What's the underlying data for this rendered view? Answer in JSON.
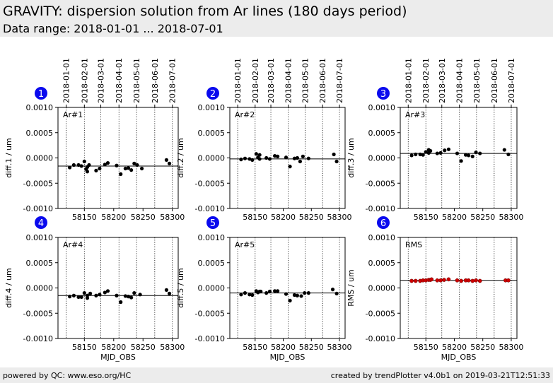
{
  "header": {
    "title": "GRAVITY: dispersion solution from Ar lines (180 days period)",
    "subtitle": "Data range: 2018-01-01 ... 2018-07-01"
  },
  "footer": {
    "left": "powered by QC: www.eso.org/HC",
    "right": "created by trendPlotter v4.0b1 on 2019-03-21T12:51:33"
  },
  "colors": {
    "badge": "#0a0aee",
    "point": "#000000",
    "rms_point": "#cc0000",
    "grid": "#000000"
  },
  "date_axis": {
    "labels": [
      "2018-01-01",
      "2018-02-01",
      "2018-03-01",
      "2018-04-01",
      "2018-05-01",
      "2018-06-01",
      "2018-07-01"
    ],
    "mjd": [
      58119,
      58150,
      58178,
      58209,
      58239,
      58270,
      58300
    ]
  },
  "chart_data": [
    {
      "type": "scatter",
      "badge": "1",
      "label": "Ar#1",
      "ylabel": "diff.1 / um",
      "xlabel": "",
      "show_dates": true,
      "xlim": [
        58105,
        58310
      ],
      "ylim": [
        -0.001,
        0.001
      ],
      "yticks": [
        0.001,
        0.0005,
        0.0,
        -0.0005,
        -0.001
      ],
      "ytick_labels": [
        "0.0010",
        "0.0005",
        "0.0000",
        "-0.0005",
        "-0.0010"
      ],
      "xticks": [
        58150,
        58200,
        58250,
        58300
      ],
      "xtick_labels": [
        "58150",
        "58200",
        "58250",
        "58300"
      ],
      "reference": -0.00016,
      "point_color": "#000000",
      "x": [
        58125,
        58132,
        58140,
        58145,
        58150,
        58153,
        58155,
        58155,
        58158,
        58170,
        58176,
        58185,
        58190,
        58205,
        58212,
        58220,
        58225,
        58230,
        58235,
        58240,
        58248,
        58290,
        58295
      ],
      "y": [
        -0.00019,
        -0.00014,
        -0.00014,
        -0.00016,
        -7e-05,
        -0.00022,
        -0.00018,
        -0.00027,
        -0.00014,
        -0.00025,
        -0.00021,
        -0.00013,
        -0.0001,
        -0.00015,
        -0.00032,
        -0.00021,
        -0.0002,
        -0.00024,
        -0.00011,
        -0.00014,
        -0.00021,
        -4e-05,
        -0.00011
      ]
    },
    {
      "type": "scatter",
      "badge": "2",
      "label": "Ar#2",
      "ylabel": "diff.2 / um",
      "xlabel": "",
      "show_dates": true,
      "xlim": [
        58105,
        58310
      ],
      "ylim": [
        -0.001,
        0.001
      ],
      "yticks": [
        0.001,
        0.0005,
        0.0,
        -0.0005,
        -0.001
      ],
      "ytick_labels": [
        "0.0010",
        "0.0005",
        "0.0000",
        "-0.0005",
        "-0.0010"
      ],
      "xticks": [
        58150,
        58200,
        58250,
        58300
      ],
      "xtick_labels": [
        "58150",
        "58200",
        "58250",
        "58300"
      ],
      "reference": -2e-05,
      "point_color": "#000000",
      "x": [
        58125,
        58132,
        58140,
        58145,
        58152,
        58155,
        58158,
        58158,
        58170,
        58176,
        58185,
        58190,
        58205,
        58212,
        58220,
        58225,
        58230,
        58235,
        58245,
        58290,
        58295
      ],
      "y": [
        -3e-05,
        -1e-05,
        -2e-05,
        -4e-05,
        8e-05,
        1e-05,
        -2e-05,
        6e-05,
        0.0,
        -2e-05,
        4e-05,
        3e-05,
        1e-05,
        -0.00017,
        -1e-05,
        0.0,
        -7e-05,
        3e-05,
        -1e-05,
        7e-05,
        -7e-05
      ]
    },
    {
      "type": "scatter",
      "badge": "3",
      "label": "Ar#3",
      "ylabel": "diff.3 / um",
      "xlabel": "",
      "show_dates": true,
      "xlim": [
        58105,
        58310
      ],
      "ylim": [
        -0.001,
        0.001
      ],
      "yticks": [
        0.001,
        0.0005,
        0.0,
        -0.0005,
        -0.001
      ],
      "ytick_labels": [
        "0.0010",
        "0.0005",
        "0.0000",
        "-0.0005",
        "-0.0010"
      ],
      "xticks": [
        58150,
        58200,
        58250,
        58300
      ],
      "xtick_labels": [
        "58150",
        "58200",
        "58250",
        "58300"
      ],
      "reference": 9e-05,
      "point_color": "#000000",
      "x": [
        58125,
        58132,
        58140,
        58145,
        58150,
        58155,
        58155,
        58158,
        58170,
        58176,
        58183,
        58190,
        58205,
        58212,
        58220,
        58225,
        58232,
        58238,
        58245,
        58288,
        58295
      ],
      "y": [
        5e-05,
        7e-05,
        7e-05,
        6e-05,
        0.00012,
        0.0001,
        0.00016,
        0.00014,
        9e-05,
        0.0001,
        0.00015,
        0.00017,
        9e-05,
        -6e-05,
        6e-05,
        5e-05,
        3e-05,
        0.00011,
        9e-05,
        0.00016,
        7e-05
      ]
    },
    {
      "type": "scatter",
      "badge": "4",
      "label": "Ar#4",
      "ylabel": "diff.4 / um",
      "xlabel": "MJD_OBS",
      "show_dates": false,
      "xlim": [
        58105,
        58310
      ],
      "ylim": [
        -0.001,
        0.001
      ],
      "yticks": [
        0.001,
        0.0005,
        0.0,
        -0.0005,
        -0.001
      ],
      "ytick_labels": [
        "0.0010",
        "0.0005",
        "0.0000",
        "-0.0005",
        "-0.0010"
      ],
      "xticks": [
        58150,
        58200,
        58250,
        58300
      ],
      "xtick_labels": [
        "58150",
        "58200",
        "58250",
        "58300"
      ],
      "reference": -0.00015,
      "point_color": "#000000",
      "x": [
        58125,
        58132,
        58140,
        58145,
        58150,
        58155,
        58155,
        58160,
        58170,
        58176,
        58185,
        58190,
        58205,
        58212,
        58220,
        58225,
        58230,
        58235,
        58245,
        58290,
        58295
      ],
      "y": [
        -0.00017,
        -0.00015,
        -0.00018,
        -0.00018,
        -0.0001,
        -0.00015,
        -0.0002,
        -0.00011,
        -0.00015,
        -0.00013,
        -9e-05,
        -6e-05,
        -0.00015,
        -0.00028,
        -0.00016,
        -0.00017,
        -0.00019,
        -0.0001,
        -0.00013,
        -4e-05,
        -0.00011
      ]
    },
    {
      "type": "scatter",
      "badge": "5",
      "label": "Ar#5",
      "ylabel": "diff.5 / um",
      "xlabel": "MJD_OBS",
      "show_dates": false,
      "xlim": [
        58105,
        58310
      ],
      "ylim": [
        -0.001,
        0.001
      ],
      "yticks": [
        0.001,
        0.0005,
        0.0,
        -0.0005,
        -0.001
      ],
      "ytick_labels": [
        "0.0010",
        "0.0005",
        "0.0000",
        "-0.0005",
        "-0.0010"
      ],
      "xticks": [
        58150,
        58200,
        58250,
        58300
      ],
      "xtick_labels": [
        "58150",
        "58200",
        "58250",
        "58300"
      ],
      "reference": -0.0001,
      "point_color": "#000000",
      "x": [
        58125,
        58132,
        58140,
        58145,
        58152,
        58155,
        58158,
        58160,
        58170,
        58176,
        58185,
        58190,
        58205,
        58212,
        58220,
        58225,
        58232,
        58238,
        58245,
        58288,
        58295
      ],
      "y": [
        -0.00013,
        -0.0001,
        -0.00013,
        -0.00014,
        -6e-05,
        -9e-05,
        -7e-05,
        -7e-05,
        -0.0001,
        -7e-05,
        -6e-05,
        -6e-05,
        -0.00012,
        -0.00025,
        -0.00014,
        -0.00015,
        -0.00016,
        -0.0001,
        -0.0001,
        -3e-05,
        -0.00011
      ]
    },
    {
      "type": "scatter",
      "badge": "6",
      "label": "RMS",
      "ylabel": "RMS / um",
      "xlabel": "MJD_OBS",
      "show_dates": false,
      "xlim": [
        58105,
        58310
      ],
      "ylim": [
        -0.001,
        0.001
      ],
      "yticks": [
        0.001,
        0.0005,
        0.0,
        -0.0005,
        -0.001
      ],
      "ytick_labels": [
        "0.0010",
        "0.0005",
        "0.0000",
        "-0.0005",
        "-0.0010"
      ],
      "xticks": [
        58150,
        58200,
        58250,
        58300
      ],
      "xtick_labels": [
        "58150",
        "58200",
        "58250",
        "58300"
      ],
      "reference": 0.00015,
      "point_color": "#cc0000",
      "x": [
        58125,
        58132,
        58140,
        58145,
        58150,
        58155,
        58158,
        58160,
        58170,
        58176,
        58182,
        58190,
        58205,
        58212,
        58220,
        58225,
        58232,
        58238,
        58245,
        58290,
        58295
      ],
      "y": [
        0.00014,
        0.00014,
        0.00014,
        0.00015,
        0.00015,
        0.00016,
        0.00016,
        0.00017,
        0.00015,
        0.00015,
        0.00016,
        0.00017,
        0.00015,
        0.00014,
        0.00015,
        0.00015,
        0.00014,
        0.00015,
        0.00014,
        0.00015,
        0.00015
      ]
    }
  ]
}
